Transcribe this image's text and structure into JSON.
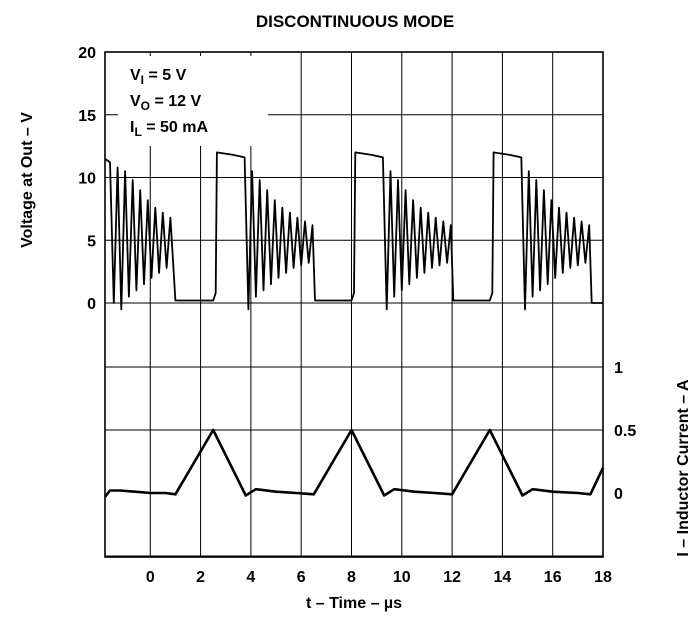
{
  "chart_data": {
    "type": "line",
    "title": "DISCONTINUOUS MODE",
    "xlabel": "t – Time – µs",
    "ylabel_left": "Voltage at Out – V",
    "ylabel_right": "I – Inductor Current – A",
    "grid": true,
    "xlim": [
      -1.8,
      18
    ],
    "x_ticks": [
      0,
      2,
      4,
      6,
      8,
      10,
      12,
      14,
      16,
      18
    ],
    "x_tick_labels": [
      "0",
      "2",
      "4",
      "6",
      "8",
      "10",
      "12",
      "14",
      "16",
      "18"
    ],
    "y_left_ticks": [
      0,
      5,
      10,
      15,
      20
    ],
    "y_left_tick_labels": [
      "0",
      "5",
      "10",
      "15",
      "20"
    ],
    "y_right_ticks": [
      0,
      0.5,
      1
    ],
    "y_right_tick_labels": [
      "0",
      "0.5",
      "1"
    ],
    "annotation": {
      "lines": [
        {
          "main": "V",
          "sub": "I",
          "rest": " = 5 V"
        },
        {
          "main": "V",
          "sub": "O",
          "rest": " = 12 V"
        },
        {
          "main": "I",
          "sub": "L",
          "rest": " = 50 mA"
        }
      ]
    },
    "series": [
      {
        "axis": "left",
        "x": [
          -1.8,
          -1.6,
          -1.45,
          -1.3,
          -1.15,
          -1.0,
          -0.85,
          -0.7,
          -0.55,
          -0.4,
          -0.25,
          -0.1,
          0.05,
          0.2,
          0.35,
          0.5,
          0.65,
          0.8,
          0.9,
          1.0,
          2.5,
          2.6,
          2.65,
          3.3,
          3.75,
          3.9,
          4.05,
          4.2,
          4.35,
          4.5,
          4.65,
          4.8,
          4.95,
          5.1,
          5.25,
          5.4,
          5.55,
          5.7,
          5.85,
          6.0,
          6.15,
          6.3,
          6.45,
          6.55,
          8.0,
          8.1,
          8.15,
          8.8,
          9.25,
          9.4,
          9.55,
          9.7,
          9.85,
          10.0,
          10.15,
          10.3,
          10.45,
          10.6,
          10.75,
          10.9,
          11.05,
          11.2,
          11.35,
          11.5,
          11.65,
          11.8,
          11.95,
          12.05,
          13.5,
          13.6,
          13.65,
          14.3,
          14.75,
          14.9,
          15.05,
          15.2,
          15.35,
          15.5,
          15.65,
          15.8,
          15.95,
          16.1,
          16.25,
          16.4,
          16.55,
          16.7,
          16.85,
          17.0,
          17.15,
          17.3,
          17.45,
          17.55,
          18.0
        ],
        "values": [
          11.5,
          11.2,
          0,
          10.8,
          -0.5,
          10.5,
          0.5,
          9.8,
          1.0,
          9.0,
          1.5,
          8.2,
          2.0,
          7.6,
          2.4,
          7.2,
          2.8,
          6.8,
          3.5,
          0.2,
          0.2,
          0.8,
          12.0,
          11.8,
          11.6,
          -0.5,
          10.5,
          0.5,
          9.8,
          1.0,
          9.0,
          1.5,
          8.2,
          2.0,
          7.6,
          2.4,
          7.2,
          2.8,
          6.8,
          3.0,
          6.5,
          3.2,
          6.2,
          0.2,
          0.2,
          0.8,
          12.0,
          11.8,
          11.6,
          -0.5,
          10.5,
          0.5,
          9.8,
          1.0,
          9.0,
          1.5,
          8.2,
          2.0,
          7.6,
          2.4,
          7.2,
          2.8,
          6.8,
          3.0,
          6.5,
          3.2,
          6.2,
          0.2,
          0.2,
          0.8,
          12.0,
          11.8,
          11.6,
          -0.5,
          10.5,
          0.5,
          9.8,
          1.0,
          9.0,
          1.5,
          8.2,
          2.0,
          7.6,
          2.4,
          7.2,
          2.8,
          6.8,
          3.0,
          6.5,
          3.2,
          6.2,
          0.0,
          0.0
        ]
      },
      {
        "axis": "right",
        "x": [
          -1.8,
          -1.6,
          -1.2,
          -0.6,
          0.0,
          0.6,
          1.0,
          2.5,
          3.8,
          4.2,
          5.0,
          5.8,
          6.5,
          8.0,
          9.3,
          9.7,
          10.5,
          11.3,
          12.0,
          13.5,
          14.8,
          15.2,
          16.0,
          17.0,
          17.5,
          18.0
        ],
        "values": [
          -0.03,
          0.02,
          0.02,
          0.01,
          0.0,
          0.0,
          -0.01,
          0.5,
          -0.02,
          0.03,
          0.01,
          0.0,
          -0.01,
          0.5,
          -0.02,
          0.03,
          0.01,
          0.0,
          -0.01,
          0.5,
          -0.02,
          0.03,
          0.01,
          0.0,
          -0.01,
          0.2
        ]
      }
    ]
  }
}
